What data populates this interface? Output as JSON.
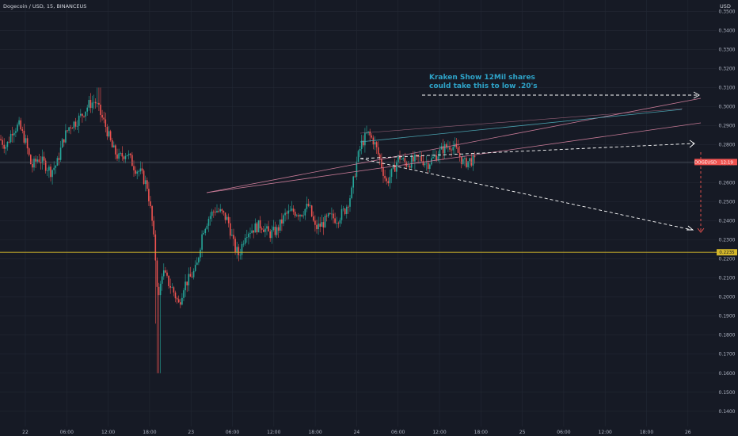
{
  "chart_data": {
    "type": "candlestick",
    "header": "Dogecoin / USD, 15, BINANCEUS",
    "currency": "USD",
    "annotation": [
      "Kraken Show 12Mil shares",
      "could take this to low .20's"
    ],
    "symbol_tag": "DOGEUSD",
    "countdown": "12:19",
    "support_label": "0.2235",
    "support_level": 0.2235,
    "last_price": 0.2709,
    "ylim": [
      0.132,
      0.356
    ],
    "y_ticks": [
      "0.1400",
      "0.1500",
      "0.1600",
      "0.1700",
      "0.1800",
      "0.1900",
      "0.2000",
      "0.2100",
      "0.2200",
      "0.2300",
      "0.2400",
      "0.2500",
      "0.2600",
      "0.2700",
      "0.2800",
      "0.2900",
      "0.3000",
      "0.3100",
      "0.3200",
      "0.3300",
      "0.3400",
      "0.3500"
    ],
    "x_ticks": [
      "22",
      "06:00",
      "12:00",
      "18:00",
      "23",
      "06:00",
      "12:00",
      "18:00",
      "24",
      "06:00",
      "12:00",
      "18:00",
      "25",
      "06:00",
      "12:00",
      "18:00",
      "26"
    ],
    "colors": {
      "up": "#26a69a",
      "down": "#ef5350",
      "support": "#d4b72a",
      "grid": "#232834",
      "channel": "#c77a96",
      "arrow": "#ffffff",
      "annotation": "#2ea3c8"
    }
  }
}
